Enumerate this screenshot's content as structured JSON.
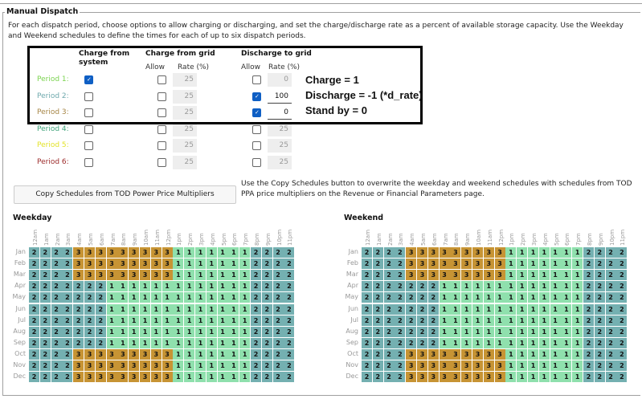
{
  "group": {
    "title": "Manual Dispatch",
    "description": "For each dispatch period, choose options to allow charging or discharging, and set the charge/discharge rate as a percent of available storage capacity. Use the Weekday and Weekend schedules to define the times for each of up to six dispatch periods."
  },
  "table": {
    "headers": {
      "charge_from_system": "Charge from system",
      "charge_from_grid": "Charge from grid",
      "discharge_to_grid": "Discharge to grid",
      "allow": "Allow",
      "rate": "Rate (%)"
    },
    "periods": [
      {
        "label": "Period 1:",
        "color": "#7bd34f",
        "charge_system": true,
        "grid_allow": false,
        "grid_rate": "25",
        "discharge_allow": false,
        "discharge_rate": "0",
        "discharge_active": false
      },
      {
        "label": "Period 2:",
        "color": "#6fa9ad",
        "charge_system": false,
        "grid_allow": false,
        "grid_rate": "25",
        "discharge_allow": true,
        "discharge_rate": "100",
        "discharge_active": true
      },
      {
        "label": "Period 3:",
        "color": "#a68545",
        "charge_system": false,
        "grid_allow": false,
        "grid_rate": "25",
        "discharge_allow": true,
        "discharge_rate": "0",
        "discharge_active": true
      },
      {
        "label": "Period 4:",
        "color": "#3fa37a",
        "charge_system": false,
        "grid_allow": false,
        "grid_rate": "25",
        "discharge_allow": false,
        "discharge_rate": "25",
        "discharge_active": false
      },
      {
        "label": "Period 5:",
        "color": "#e3e32a",
        "charge_system": false,
        "grid_allow": false,
        "grid_rate": "25",
        "discharge_allow": false,
        "discharge_rate": "25",
        "discharge_active": false
      },
      {
        "label": "Period 6:",
        "color": "#9c2a2a",
        "charge_system": false,
        "grid_allow": false,
        "grid_rate": "25",
        "discharge_allow": false,
        "discharge_rate": "25",
        "discharge_active": false
      }
    ]
  },
  "annotations": [
    "Charge = 1",
    "Discharge = -1 (*d_rate)",
    "Stand by = 0"
  ],
  "copy_button": {
    "label": "Copy Schedules from TOD Power Price Multipliers"
  },
  "copy_description": "Use the Copy Schedules button to overwrite the weekday and weekend schedules with schedules from TOD PPA price multipliers on the Revenue or Financial Parameters page.",
  "hours": [
    "12am",
    "1am",
    "2am",
    "3am",
    "4am",
    "5am",
    "6am",
    "7am",
    "8am",
    "9am",
    "10am",
    "11am",
    "12pm",
    "1pm",
    "2pm",
    "3pm",
    "4pm",
    "5pm",
    "6pm",
    "7pm",
    "8pm",
    "9pm",
    "10pm",
    "11pm"
  ],
  "months": [
    "Jan",
    "Feb",
    "Mar",
    "Apr",
    "May",
    "Jun",
    "Jul",
    "Aug",
    "Sep",
    "Oct",
    "Nov",
    "Dec"
  ],
  "colors": {
    "1": "#8fe0ad",
    "2": "#74b0b1",
    "3": "#c79434"
  },
  "weekday": {
    "title": "Weekday",
    "rows": [
      "222233333333311111112222",
      "222233333333311111112222",
      "222233333333311111112222",
      "222222211111111111112222",
      "222222211111111111112222",
      "222222211111111111112222",
      "222222211111111111112222",
      "222222211111111111112222",
      "222222211111111111112222",
      "222233333333311111112222",
      "222233333333311111112222",
      "222233333333311111112222"
    ]
  },
  "weekend": {
    "title": "Weekend",
    "rows": [
      "222233333333311111112222",
      "222233333333311111112222",
      "222233333333311111112222",
      "222222211111111111112222",
      "222222211111111111112222",
      "222222211111111111112222",
      "222222211111111111112222",
      "222222211111111111112222",
      "222222211111111111112222",
      "222233333333311111112222",
      "222233333333311111112222",
      "222233333333311111112222"
    ]
  }
}
